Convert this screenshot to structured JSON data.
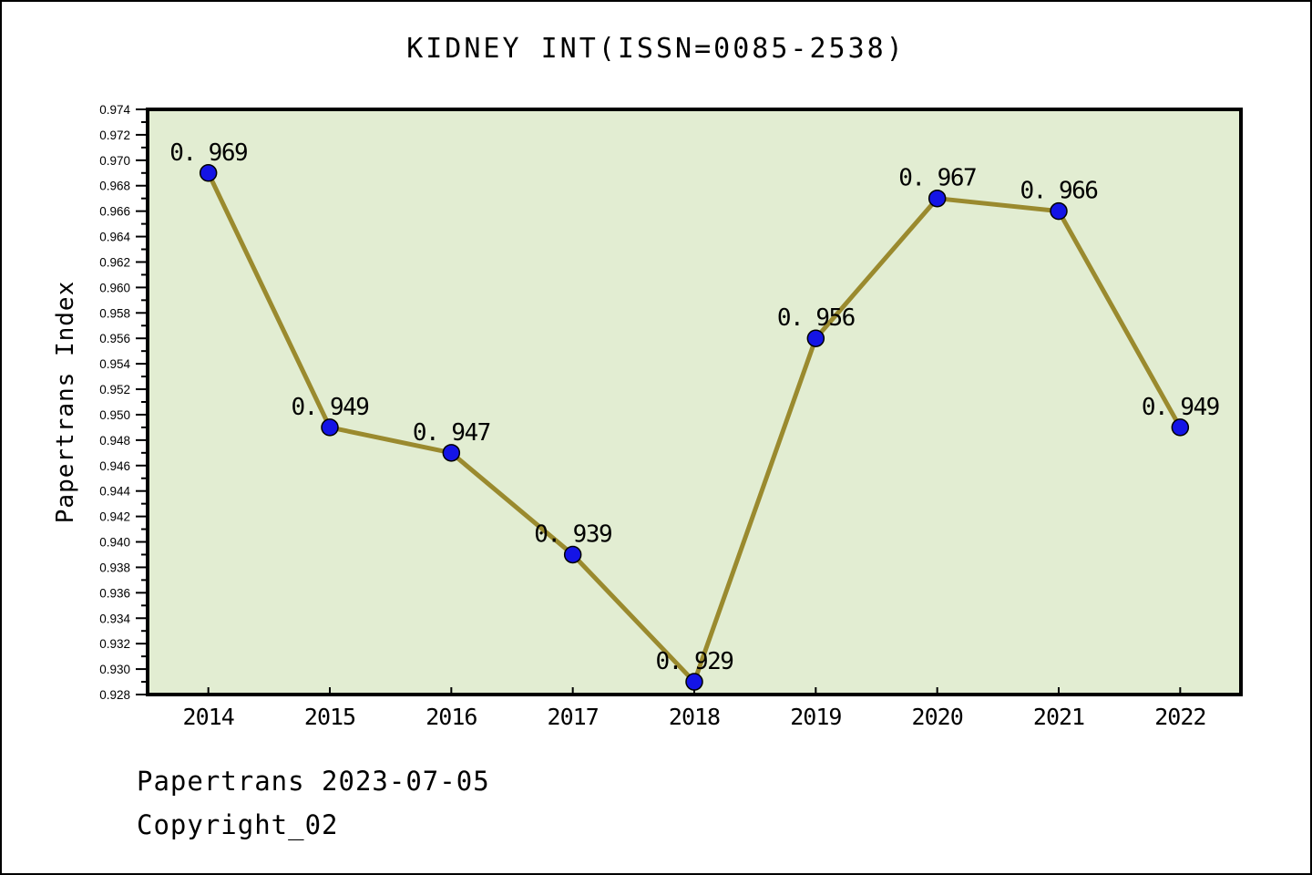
{
  "window_title": "KIDNEY INT(ISSN=0085-2538)",
  "footer": {
    "line1": "Papertrans 2023-07-05",
    "line2": "Copyright_02"
  },
  "chart_data": {
    "type": "line",
    "title": "KIDNEY INT(ISSN=0085-2538)",
    "xlabel": "",
    "ylabel": "Papertrans Index",
    "categories": [
      "2014",
      "2015",
      "2016",
      "2017",
      "2018",
      "2019",
      "2020",
      "2021",
      "2022"
    ],
    "values": [
      0.969,
      0.949,
      0.947,
      0.939,
      0.929,
      0.956,
      0.967,
      0.966,
      0.949
    ],
    "point_labels": [
      "0. 969",
      "0. 949",
      "0. 947",
      "0. 939",
      "0. 929",
      "0. 956",
      "0. 967",
      "0. 966",
      "0. 949"
    ],
    "ylim": [
      0.928,
      0.974
    ],
    "ytick_step": 0.002,
    "ytick_minor_step": 0.001,
    "ytick_decimals": 3,
    "grid": "off",
    "legend": "none",
    "colors": {
      "plot_bg": "#e2edd2",
      "line": "#9a8a2e",
      "marker_fill": "#1414e6",
      "marker_stroke": "#000000",
      "axis": "#000000",
      "text": "#000000"
    }
  }
}
